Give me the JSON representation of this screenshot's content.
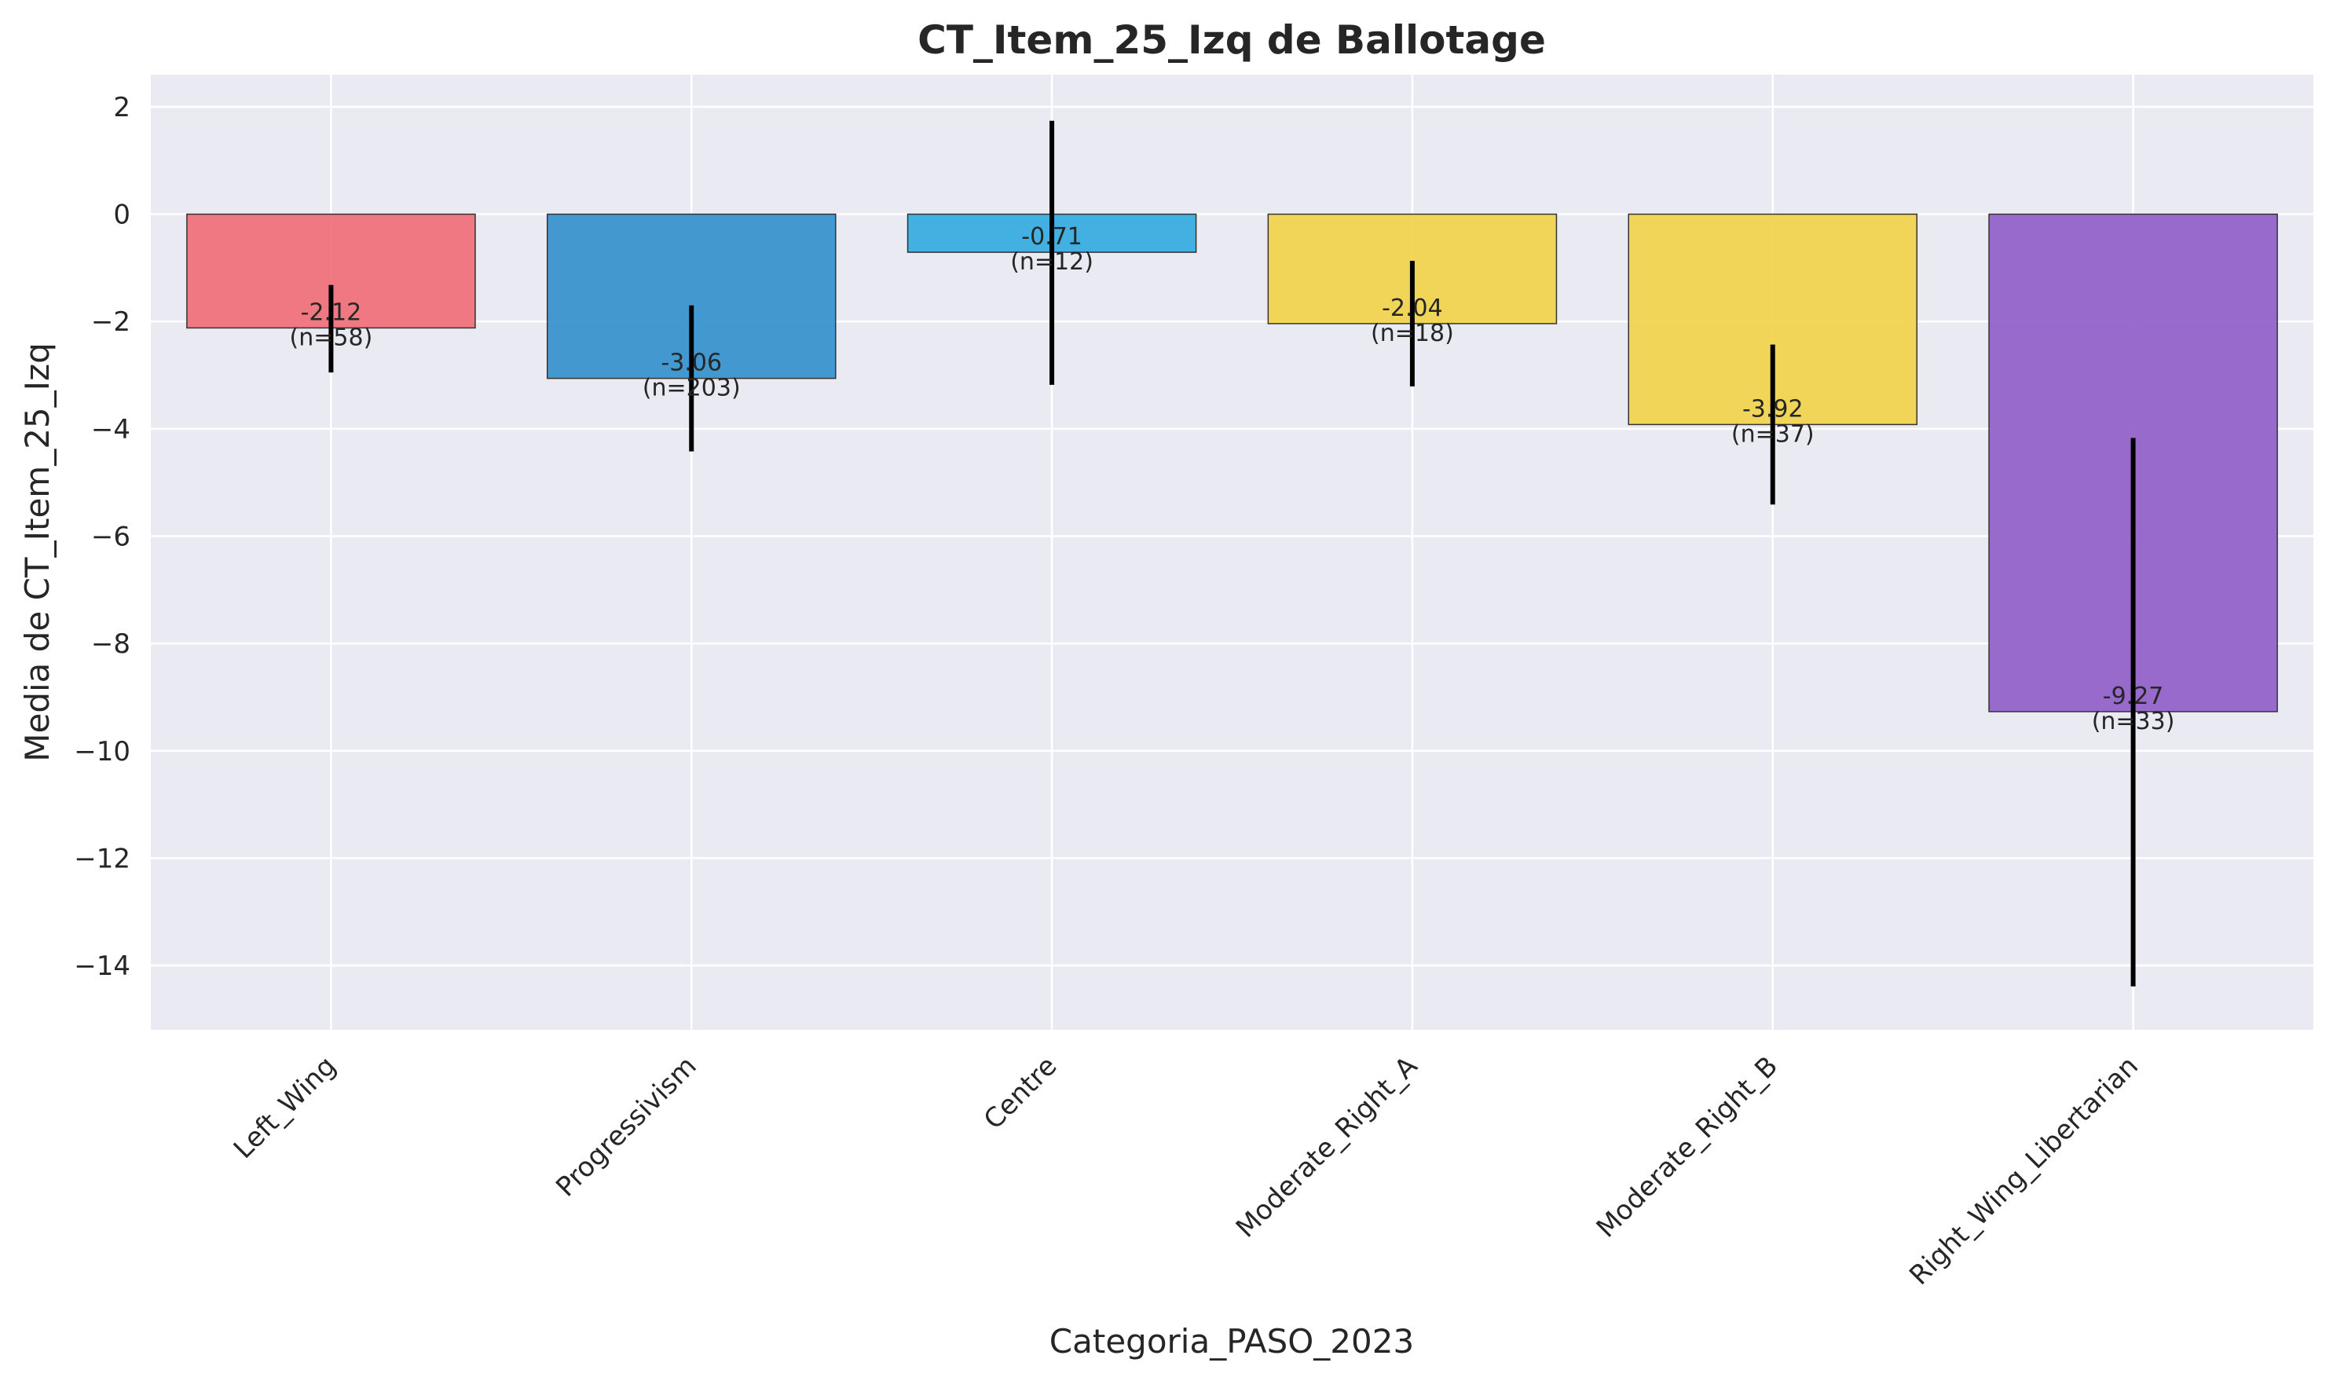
{
  "chart_data": {
    "type": "bar",
    "title": "CT_Item_25_Izq de Ballotage",
    "xlabel": "Categoria_PASO_2023",
    "ylabel": "Media de CT_Item_25_Izq",
    "ylim": [
      -15.2,
      2.6
    ],
    "yticks": [
      2,
      0,
      -2,
      -4,
      -6,
      -8,
      -10,
      -12,
      -14
    ],
    "ytick_labels": [
      "2",
      "0",
      "−2",
      "−4",
      "−6",
      "−8",
      "−10",
      "−12",
      "−14"
    ],
    "grid": true,
    "categories": [
      "Left_Wing",
      "Progressivism",
      "Centre",
      "Moderate_Right_A",
      "Moderate_Right_B",
      "Right_Wing_Libertarian"
    ],
    "values": [
      -2.12,
      -3.06,
      -0.71,
      -2.04,
      -3.92,
      -9.27
    ],
    "n": [
      58,
      203,
      12,
      18,
      37,
      33
    ],
    "error_low": [
      -2.95,
      -4.42,
      -3.18,
      -3.21,
      -5.41,
      -14.39
    ],
    "error_high": [
      -1.32,
      -1.7,
      1.74,
      -0.87,
      -2.43,
      -4.17
    ],
    "value_labels": [
      "-2.12",
      "-3.06",
      "-0.71",
      "-2.04",
      "-3.92",
      "-9.27"
    ],
    "n_labels": [
      "(n=58)",
      "(n=203)",
      "(n=12)",
      "(n=18)",
      "(n=37)",
      "(n=33)"
    ],
    "colors": [
      "#F0727C",
      "#3A93CC",
      "#3AADE0",
      "#F1D44F",
      "#F1D44F",
      "#9463C8"
    ]
  }
}
